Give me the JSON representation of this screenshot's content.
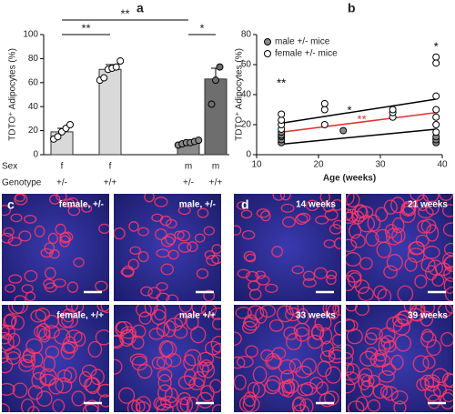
{
  "panel_labels": [
    "a",
    "b",
    "c",
    "d"
  ],
  "chart_data": [
    {
      "type": "bar",
      "y_label": "TDTO⁺ Adipocytes (%)",
      "row_labels": [
        "Sex",
        "Genotype"
      ],
      "categories": [
        "f",
        "f",
        "m",
        "m"
      ],
      "genotypes": [
        "+/-",
        "+/+",
        "+/-",
        "+/+"
      ],
      "values": [
        19,
        71,
        10,
        63
      ],
      "errors": [
        3,
        4,
        2,
        9
      ],
      "colors": [
        "#d9d9d9",
        "#d9d9d9",
        "#8a8a8a",
        "#6e6e6e"
      ],
      "point_colors": [
        "#ffffff",
        "#ffffff",
        "#8a8a8a",
        "#6e6e6e"
      ],
      "points": [
        [
          13,
          15,
          19,
          22,
          25
        ],
        [
          62,
          64,
          71,
          72,
          73,
          78
        ],
        [
          8,
          9,
          10,
          10,
          11,
          12
        ],
        [
          42,
          62,
          73
        ]
      ],
      "significance": [
        "**",
        "**",
        "*"
      ],
      "ylim": [
        0,
        100
      ],
      "yticks": [
        0,
        20,
        40,
        60,
        80,
        100
      ]
    },
    {
      "type": "scatter",
      "y_label": "TDTO⁺ Adipocytes (%)",
      "x_label": "Age (weeks)",
      "xlim": [
        10,
        40
      ],
      "xticks": [
        10,
        20,
        30,
        40
      ],
      "ylim": [
        0,
        80
      ],
      "yticks": [
        0,
        20,
        40,
        60,
        80
      ],
      "series": [
        {
          "name": "male +/- mice",
          "color": "#8a8a8a",
          "x": [
            14,
            14,
            14,
            14,
            14,
            24,
            39,
            39,
            39
          ],
          "values": [
            8,
            10,
            12,
            13,
            15,
            16,
            8,
            10,
            12
          ]
        },
        {
          "name": "female +/- mice",
          "color": "#ffffff",
          "x": [
            14,
            14,
            14,
            14,
            21,
            21,
            21,
            32,
            32,
            32,
            39,
            39,
            39,
            39,
            39,
            39,
            39
          ],
          "values": [
            17,
            20,
            23,
            27,
            20,
            30,
            34,
            25,
            28,
            30,
            65,
            61,
            39,
            30,
            25,
            20,
            15
          ]
        }
      ],
      "lines": [
        {
          "color": "#000000",
          "x": [
            14,
            39
          ],
          "values": [
            21,
            37
          ]
        },
        {
          "color": "#e03030",
          "x": [
            14,
            39
          ],
          "values": [
            15,
            28
          ]
        },
        {
          "color": "#000000",
          "x": [
            14,
            39
          ],
          "values": [
            7,
            17
          ]
        }
      ],
      "annotations": [
        {
          "text": "**",
          "color": "#000000"
        },
        {
          "text": "*",
          "color": "#000000"
        },
        {
          "text": "**",
          "color": "#e03030"
        },
        {
          "text": "*",
          "color": "#000000"
        }
      ]
    }
  ],
  "micrographs": [
    {
      "label": "female, +/-"
    },
    {
      "label": "male, +/-"
    },
    {
      "label": "female, +/+"
    },
    {
      "label": "male +/+"
    },
    {
      "label": "14 weeks"
    },
    {
      "label": "21 weeks"
    },
    {
      "label": "33 weeks"
    },
    {
      "label": "39 weeks"
    }
  ]
}
